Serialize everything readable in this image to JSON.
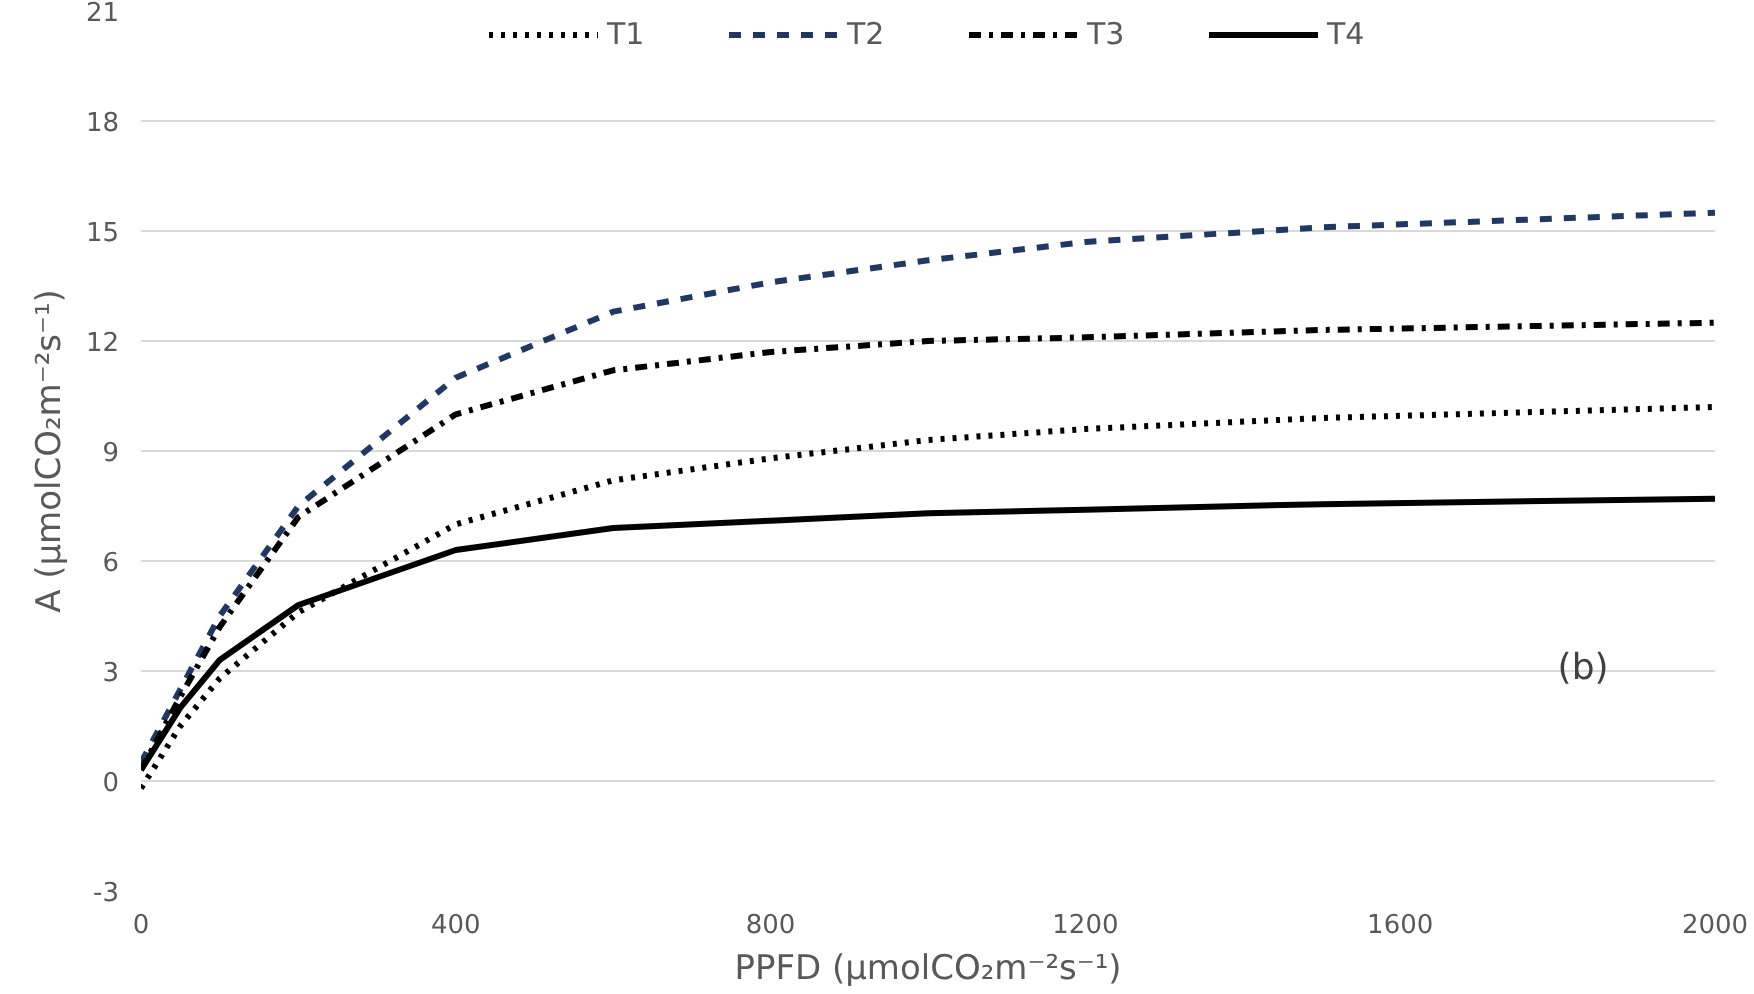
{
  "chart_data": {
    "type": "line",
    "xlabel": "PPFD (μmolCO₂m⁻²s⁻¹)",
    "ylabel": "A (μmolCO₂m⁻²s⁻¹)",
    "x": [
      0,
      50,
      100,
      200,
      400,
      600,
      800,
      1000,
      1200,
      1500,
      2000
    ],
    "series": [
      {
        "name": "T1",
        "color": "#000000",
        "line_style": "dotted",
        "values": [
          -0.2,
          1.5,
          2.8,
          4.6,
          7.0,
          8.2,
          8.8,
          9.3,
          9.6,
          9.9,
          10.2
        ]
      },
      {
        "name": "T2",
        "color": "#1f3864",
        "line_style": "dashed",
        "values": [
          0.5,
          2.5,
          4.5,
          7.5,
          11.0,
          12.8,
          13.6,
          14.2,
          14.7,
          15.1,
          15.5
        ]
      },
      {
        "name": "T3",
        "color": "#000000",
        "line_style": "dashdot",
        "values": [
          0.3,
          2.3,
          4.2,
          7.2,
          10.0,
          11.2,
          11.7,
          12.0,
          12.1,
          12.3,
          12.5
        ]
      },
      {
        "name": "T4",
        "color": "#000000",
        "line_style": "solid",
        "values": [
          0.3,
          2.0,
          3.3,
          4.8,
          6.3,
          6.9,
          7.1,
          7.3,
          7.4,
          7.55,
          7.7
        ]
      }
    ],
    "xlim": [
      0,
      2000
    ],
    "xticks": [
      0,
      400,
      800,
      1200,
      1600,
      2000
    ],
    "ylim": [
      -3,
      21
    ],
    "yticks": [
      -3,
      0,
      3,
      6,
      9,
      12,
      15,
      18,
      21
    ],
    "grid": "y",
    "legend": "top",
    "marker": "none",
    "annotations": [
      "(b)"
    ]
  }
}
